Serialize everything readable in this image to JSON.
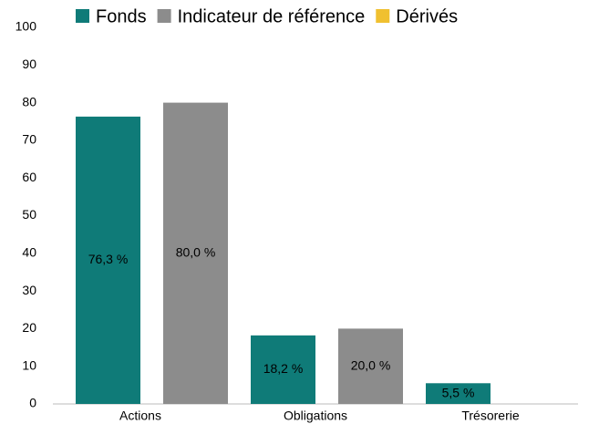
{
  "chart_data": {
    "type": "bar",
    "categories": [
      "Actions",
      "Obligations",
      "Trésorerie"
    ],
    "series": [
      {
        "name": "Fonds",
        "color": "#0f7b78",
        "values": [
          76.3,
          18.2,
          5.5
        ],
        "value_labels": [
          "76,3 %",
          "18,2 %",
          "5,5 %"
        ]
      },
      {
        "name": "Indicateur de référence",
        "color": "#8c8c8c",
        "values": [
          80.0,
          20.0,
          null
        ],
        "value_labels": [
          "80,0 %",
          "20,0 %",
          null
        ]
      },
      {
        "name": "Dérivés",
        "color": "#f0c030",
        "values": [
          null,
          null,
          null
        ]
      }
    ],
    "ylim": [
      0,
      100
    ],
    "yticks": [
      0,
      10,
      20,
      30,
      40,
      50,
      60,
      70,
      80,
      90,
      100
    ],
    "grid": false,
    "legend": "top"
  }
}
